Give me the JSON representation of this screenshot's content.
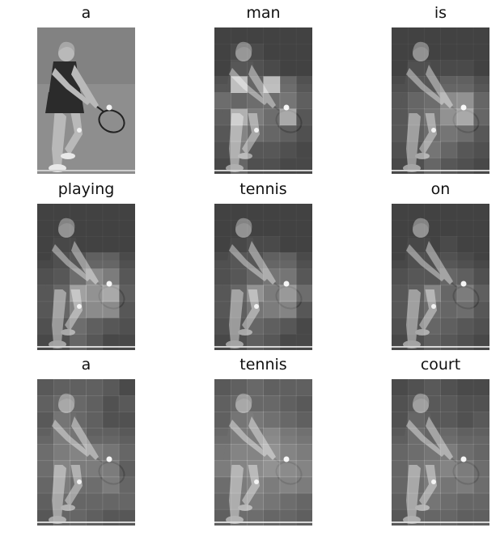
{
  "figure": {
    "panels": [
      {
        "word": "a",
        "attention": [
          [
            0.5,
            0.5,
            0.5,
            0.5,
            0.5,
            0.5
          ],
          [
            0.5,
            0.5,
            0.5,
            0.5,
            0.5,
            0.5
          ],
          [
            0.5,
            0.5,
            0.5,
            0.5,
            0.5,
            0.5
          ],
          [
            0.5,
            0.5,
            0.5,
            0.5,
            0.5,
            0.5
          ],
          [
            0.5,
            0.5,
            0.5,
            0.5,
            0.5,
            0.5
          ],
          [
            0.5,
            0.5,
            0.5,
            0.5,
            0.5,
            0.5
          ],
          [
            0.5,
            0.5,
            0.5,
            0.5,
            0.5,
            0.5
          ],
          [
            0.5,
            0.5,
            0.5,
            0.5,
            0.5,
            0.5
          ],
          [
            0.5,
            0.5,
            0.5,
            0.5,
            0.5,
            0.5
          ]
        ],
        "plain": true
      },
      {
        "word": "man",
        "attention": [
          [
            0.1,
            0.1,
            0.1,
            0.1,
            0.1,
            0.1
          ],
          [
            0.1,
            0.15,
            0.15,
            0.1,
            0.1,
            0.1
          ],
          [
            0.1,
            0.2,
            0.2,
            0.15,
            0.1,
            0.1
          ],
          [
            0.2,
            0.9,
            0.3,
            0.9,
            0.35,
            0.2
          ],
          [
            0.35,
            0.3,
            0.35,
            0.35,
            0.4,
            0.25
          ],
          [
            0.25,
            0.8,
            0.45,
            0.35,
            0.75,
            0.2
          ],
          [
            0.2,
            0.5,
            0.35,
            0.3,
            0.25,
            0.15
          ],
          [
            0.15,
            0.45,
            0.2,
            0.2,
            0.15,
            0.1
          ],
          [
            0.1,
            0.3,
            0.15,
            0.15,
            0.1,
            0.1
          ]
        ]
      },
      {
        "word": "is",
        "attention": [
          [
            0.1,
            0.1,
            0.1,
            0.1,
            0.1,
            0.1
          ],
          [
            0.1,
            0.1,
            0.1,
            0.1,
            0.1,
            0.1
          ],
          [
            0.1,
            0.15,
            0.15,
            0.15,
            0.15,
            0.1
          ],
          [
            0.15,
            0.2,
            0.2,
            0.3,
            0.3,
            0.2
          ],
          [
            0.2,
            0.3,
            0.35,
            0.55,
            0.6,
            0.3
          ],
          [
            0.2,
            0.3,
            0.4,
            0.6,
            0.75,
            0.3
          ],
          [
            0.2,
            0.25,
            0.35,
            0.4,
            0.35,
            0.2
          ],
          [
            0.15,
            0.2,
            0.4,
            0.3,
            0.2,
            0.15
          ],
          [
            0.1,
            0.15,
            0.3,
            0.2,
            0.15,
            0.1
          ]
        ]
      },
      {
        "word": "playing",
        "attention": [
          [
            0.1,
            0.1,
            0.1,
            0.1,
            0.1,
            0.1
          ],
          [
            0.1,
            0.1,
            0.1,
            0.1,
            0.1,
            0.1
          ],
          [
            0.1,
            0.1,
            0.1,
            0.1,
            0.1,
            0.1
          ],
          [
            0.1,
            0.15,
            0.2,
            0.3,
            0.3,
            0.15
          ],
          [
            0.15,
            0.2,
            0.35,
            0.55,
            0.45,
            0.2
          ],
          [
            0.2,
            0.3,
            0.7,
            0.6,
            0.75,
            0.25
          ],
          [
            0.2,
            0.3,
            0.5,
            0.55,
            0.55,
            0.2
          ],
          [
            0.15,
            0.2,
            0.35,
            0.25,
            0.2,
            0.15
          ],
          [
            0.1,
            0.15,
            0.3,
            0.2,
            0.1,
            0.1
          ]
        ]
      },
      {
        "word": "tennis",
        "attention": [
          [
            0.1,
            0.1,
            0.1,
            0.1,
            0.1,
            0.1
          ],
          [
            0.1,
            0.1,
            0.1,
            0.1,
            0.1,
            0.1
          ],
          [
            0.1,
            0.1,
            0.15,
            0.15,
            0.1,
            0.1
          ],
          [
            0.15,
            0.2,
            0.2,
            0.3,
            0.3,
            0.15
          ],
          [
            0.15,
            0.2,
            0.3,
            0.4,
            0.4,
            0.2
          ],
          [
            0.2,
            0.3,
            0.6,
            0.45,
            0.65,
            0.35
          ],
          [
            0.2,
            0.25,
            0.4,
            0.45,
            0.5,
            0.2
          ],
          [
            0.15,
            0.2,
            0.3,
            0.25,
            0.2,
            0.1
          ],
          [
            0.1,
            0.15,
            0.25,
            0.2,
            0.1,
            0.1
          ]
        ]
      },
      {
        "word": "on",
        "attention": [
          [
            0.1,
            0.1,
            0.1,
            0.1,
            0.1,
            0.1
          ],
          [
            0.1,
            0.1,
            0.1,
            0.1,
            0.1,
            0.1
          ],
          [
            0.1,
            0.1,
            0.1,
            0.15,
            0.1,
            0.1
          ],
          [
            0.1,
            0.15,
            0.15,
            0.2,
            0.15,
            0.1
          ],
          [
            0.15,
            0.2,
            0.2,
            0.3,
            0.25,
            0.15
          ],
          [
            0.2,
            0.25,
            0.5,
            0.3,
            0.45,
            0.25
          ],
          [
            0.2,
            0.25,
            0.35,
            0.3,
            0.35,
            0.2
          ],
          [
            0.15,
            0.2,
            0.3,
            0.25,
            0.2,
            0.15
          ],
          [
            0.1,
            0.15,
            0.25,
            0.2,
            0.15,
            0.1
          ]
        ]
      },
      {
        "word": "a",
        "attention": [
          [
            0.25,
            0.3,
            0.3,
            0.3,
            0.25,
            0.15
          ],
          [
            0.3,
            0.35,
            0.35,
            0.3,
            0.2,
            0.25
          ],
          [
            0.25,
            0.4,
            0.35,
            0.3,
            0.2,
            0.2
          ],
          [
            0.3,
            0.45,
            0.4,
            0.3,
            0.3,
            0.25
          ],
          [
            0.35,
            0.45,
            0.5,
            0.45,
            0.4,
            0.3
          ],
          [
            0.35,
            0.5,
            0.45,
            0.45,
            0.45,
            0.25
          ],
          [
            0.3,
            0.45,
            0.35,
            0.35,
            0.45,
            0.3
          ],
          [
            0.25,
            0.35,
            0.3,
            0.3,
            0.3,
            0.3
          ],
          [
            0.2,
            0.3,
            0.3,
            0.25,
            0.2,
            0.2
          ]
        ]
      },
      {
        "word": "tennis",
        "attention": [
          [
            0.25,
            0.3,
            0.35,
            0.3,
            0.3,
            0.3
          ],
          [
            0.3,
            0.35,
            0.35,
            0.35,
            0.3,
            0.25
          ],
          [
            0.3,
            0.4,
            0.45,
            0.4,
            0.35,
            0.3
          ],
          [
            0.35,
            0.45,
            0.45,
            0.55,
            0.45,
            0.4
          ],
          [
            0.4,
            0.5,
            0.5,
            0.6,
            0.5,
            0.45
          ],
          [
            0.45,
            0.5,
            0.55,
            0.6,
            0.55,
            0.5
          ],
          [
            0.35,
            0.45,
            0.5,
            0.45,
            0.5,
            0.45
          ],
          [
            0.3,
            0.4,
            0.45,
            0.4,
            0.35,
            0.3
          ],
          [
            0.25,
            0.35,
            0.35,
            0.3,
            0.3,
            0.25
          ]
        ]
      },
      {
        "word": "court",
        "attention": [
          [
            0.15,
            0.2,
            0.25,
            0.2,
            0.15,
            0.15
          ],
          [
            0.2,
            0.25,
            0.25,
            0.25,
            0.2,
            0.2
          ],
          [
            0.2,
            0.3,
            0.25,
            0.25,
            0.2,
            0.25
          ],
          [
            0.25,
            0.35,
            0.3,
            0.35,
            0.3,
            0.3
          ],
          [
            0.3,
            0.35,
            0.4,
            0.45,
            0.35,
            0.3
          ],
          [
            0.3,
            0.4,
            0.45,
            0.5,
            0.45,
            0.35
          ],
          [
            0.3,
            0.35,
            0.45,
            0.4,
            0.45,
            0.35
          ],
          [
            0.25,
            0.35,
            0.4,
            0.35,
            0.3,
            0.3
          ],
          [
            0.2,
            0.3,
            0.3,
            0.3,
            0.25,
            0.25
          ]
        ]
      }
    ]
  }
}
